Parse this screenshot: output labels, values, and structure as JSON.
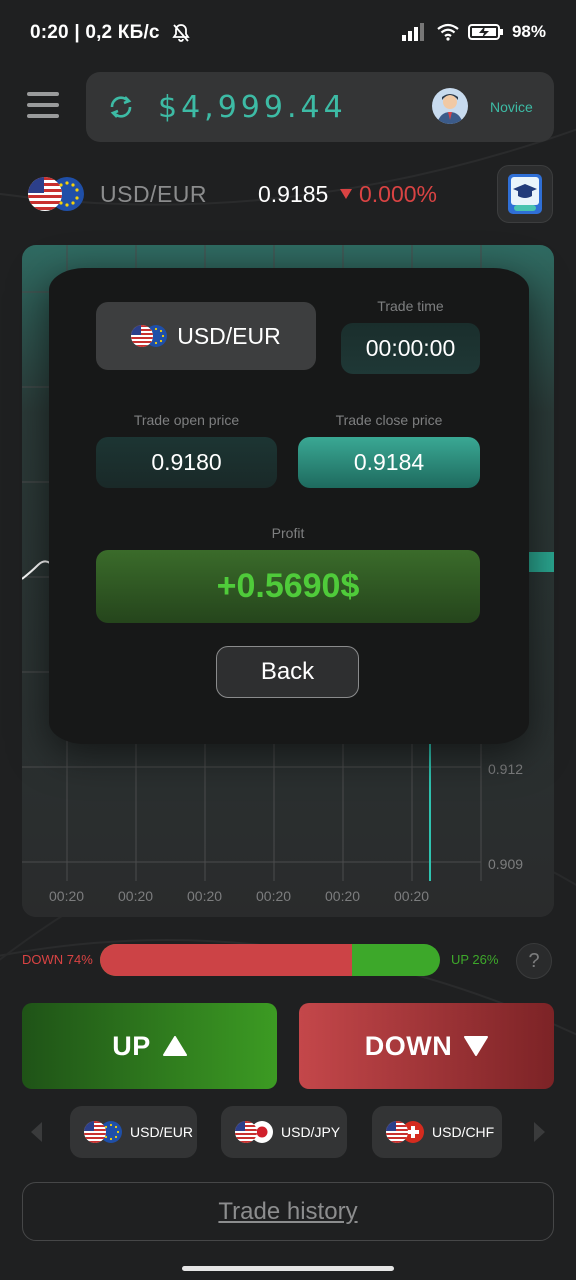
{
  "status_bar": {
    "time": "0:20",
    "network_speed": "0,2 КБ/с",
    "battery_percent": "98%"
  },
  "header": {
    "balance": "$4,999.44",
    "account_level": "Novice"
  },
  "pair": {
    "name": "USD/EUR",
    "price": "0.9185",
    "change": "0.000%",
    "change_direction": "down"
  },
  "chart": {
    "y_ticks": [
      "0.912",
      "0.909"
    ],
    "x_ticks": [
      "00:20",
      "00:20",
      "00:20",
      "00:20",
      "00:20",
      "00:20"
    ]
  },
  "modal": {
    "pair_label": "USD/EUR",
    "trade_time_label": "Trade time",
    "trade_time": "00:00:00",
    "open_price_label": "Trade open price",
    "open_price": "0.9180",
    "close_price_label": "Trade close price",
    "close_price": "0.9184",
    "profit_label": "Profit",
    "profit": "+0.5690$",
    "back_label": "Back"
  },
  "sentiment": {
    "down_label": "DOWN 74%",
    "up_label": "UP 26%",
    "down_fraction": 0.74,
    "help_label": "?"
  },
  "actions": {
    "up_label": "UP",
    "down_label": "DOWN"
  },
  "pair_chips": [
    {
      "label": "USD/EUR",
      "icon": "usd-eur-flags"
    },
    {
      "label": "USD/JPY",
      "icon": "usd-jpy-flags"
    },
    {
      "label": "USD/CHF",
      "icon": "usd-chf-flags"
    }
  ],
  "footer": {
    "history_label": "Trade history"
  },
  "colors": {
    "accent_teal": "#3dbba5",
    "down_red": "#d94343",
    "up_green": "#3da82a",
    "background": "#1f2021"
  }
}
